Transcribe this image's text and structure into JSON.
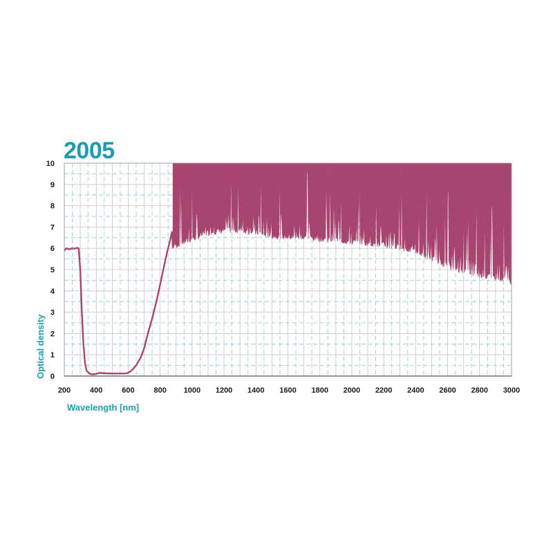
{
  "chart_data": {
    "type": "line",
    "title": "2005",
    "xlabel": "Wavelength [nm]",
    "ylabel": "Optical density",
    "xlim": [
      200,
      3000
    ],
    "ylim": [
      0,
      10
    ],
    "x_ticks": [
      200,
      400,
      600,
      800,
      1000,
      1200,
      1400,
      1600,
      1800,
      2000,
      2200,
      2400,
      2600,
      2800,
      3000
    ],
    "y_ticks": [
      0,
      1,
      2,
      3,
      4,
      5,
      6,
      7,
      8,
      9,
      10
    ],
    "grid": true,
    "colors": {
      "series": "#a8456f",
      "title": "#1e9bb0",
      "grid_major": "#bfc6cc",
      "grid_minor": "#8cc4dc"
    },
    "series": [
      {
        "values": [
          [
            200,
            5.9
          ],
          [
            215,
            6.0
          ],
          [
            230,
            5.95
          ],
          [
            250,
            6.0
          ],
          [
            265,
            5.98
          ],
          [
            280,
            6.02
          ],
          [
            290,
            6.0
          ],
          [
            300,
            5.0
          ],
          [
            310,
            3.0
          ],
          [
            320,
            1.5
          ],
          [
            330,
            0.6
          ],
          [
            340,
            0.25
          ],
          [
            360,
            0.1
          ],
          [
            380,
            0.08
          ],
          [
            400,
            0.1
          ],
          [
            420,
            0.15
          ],
          [
            450,
            0.13
          ],
          [
            500,
            0.12
          ],
          [
            550,
            0.12
          ],
          [
            580,
            0.12
          ],
          [
            600,
            0.15
          ],
          [
            620,
            0.25
          ],
          [
            650,
            0.5
          ],
          [
            680,
            0.9
          ],
          [
            700,
            1.3
          ],
          [
            720,
            1.9
          ],
          [
            750,
            2.7
          ],
          [
            780,
            3.6
          ],
          [
            800,
            4.3
          ],
          [
            820,
            5.0
          ],
          [
            840,
            5.7
          ],
          [
            860,
            6.3
          ],
          [
            875,
            6.8
          ]
        ]
      },
      {
        "type": "area",
        "lower": [
          [
            880,
            6.0
          ],
          [
            900,
            6.0
          ],
          [
            1000,
            6.3
          ],
          [
            1100,
            6.6
          ],
          [
            1200,
            6.7
          ],
          [
            1300,
            6.7
          ],
          [
            1400,
            6.6
          ],
          [
            1500,
            6.45
          ],
          [
            1600,
            6.4
          ],
          [
            1700,
            6.35
          ],
          [
            1800,
            6.3
          ],
          [
            1900,
            6.25
          ],
          [
            2000,
            6.15
          ],
          [
            2100,
            6.1
          ],
          [
            2200,
            6.0
          ],
          [
            2300,
            5.9
          ],
          [
            2400,
            5.7
          ],
          [
            2500,
            5.4
          ],
          [
            2600,
            5.0
          ],
          [
            2700,
            4.8
          ],
          [
            2800,
            4.6
          ],
          [
            2900,
            4.5
          ],
          [
            3000,
            4.3
          ]
        ],
        "upper": 10
      }
    ]
  }
}
